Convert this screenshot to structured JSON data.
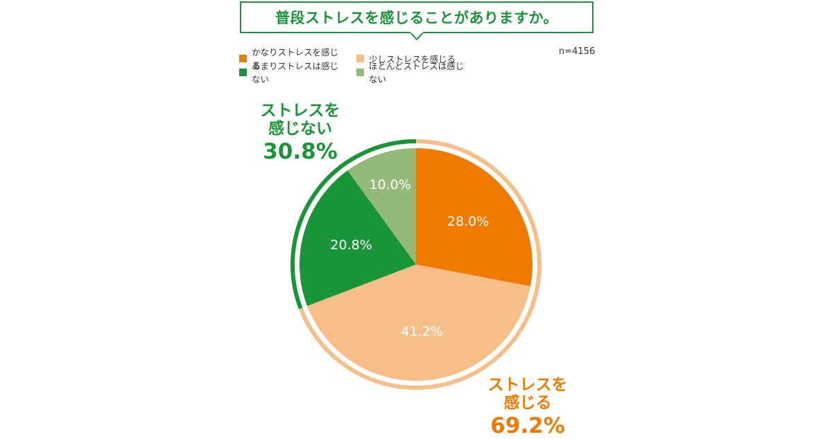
{
  "chart_data": {
    "type": "pie",
    "title": "普段ストレスを感じることがありますか。",
    "sample_size": "n=4156",
    "legend_position": "top-left",
    "slices": [
      {
        "name": "かなりストレスを感じる",
        "value": 28.0,
        "label": "28.0%",
        "color": "#ef7a00"
      },
      {
        "name": "少しストレスを感じる",
        "value": 41.2,
        "label": "41.2%",
        "color": "#f6be88"
      },
      {
        "name": "あまりストレスは感じない",
        "value": 20.8,
        "label": "20.8%",
        "color": "#1a9438"
      },
      {
        "name": "ほとんどストレスは感じない",
        "value": 10.0,
        "label": "10.0%",
        "color": "#94ba78"
      }
    ],
    "groups": [
      {
        "name_line1": "ストレスを",
        "name_line2": "感じる",
        "value": 69.2,
        "label": "69.2%",
        "color": "#ef7a00",
        "ring_color": "#f6be88"
      },
      {
        "name_line1": "ストレスを",
        "name_line2": "感じない",
        "value": 30.8,
        "label": "30.8%",
        "color": "#1a9438",
        "ring_color": "#1a9438"
      }
    ]
  }
}
